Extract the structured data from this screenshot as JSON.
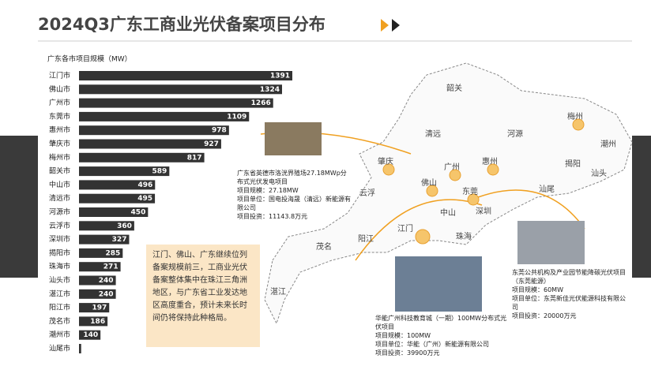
{
  "chart_data": {
    "type": "bar",
    "orientation": "horizontal",
    "title": "2024Q3广东工商业光伏备案项目分布",
    "subtitle": "广东各市项目规模（MW）",
    "categories": [
      "江门市",
      "佛山市",
      "广州市",
      "东莞市",
      "惠州市",
      "肇庆市",
      "梅州市",
      "韶关市",
      "中山市",
      "清远市",
      "河源市",
      "云浮市",
      "深圳市",
      "揭阳市",
      "珠海市",
      "汕头市",
      "湛江市",
      "阳江市",
      "茂名市",
      "潮州市",
      "汕尾市"
    ],
    "values": [
      1391,
      1324,
      1266,
      1109,
      978,
      927,
      817,
      589,
      496,
      495,
      450,
      360,
      327,
      285,
      271,
      240,
      240,
      197,
      186,
      140,
      14
    ],
    "color": "#333333",
    "annotation": "江门、佛山、广东继续位列备案规模前三，工商业光伏备案整体集中在珠江三角洲地区，与广东省工业发达地区高度重合，预计未来长时间仍将保持此种格局。"
  },
  "map": {
    "cities": [
      "韶关",
      "清远",
      "河源",
      "梅州",
      "潮州",
      "揭阳",
      "汕头",
      "汕尾",
      "惠州",
      "肇庆",
      "广州",
      "佛山",
      "东莞",
      "云浮",
      "中山",
      "深圳",
      "江门",
      "珠海",
      "阳江",
      "茂名",
      "湛江"
    ]
  },
  "projects": [
    {
      "name": "广东省英德市洛洸界殖场27.18MWp分布式光伏发电项目",
      "scale": "项目规模：27.18MW",
      "unit": "项目单位：国电投海晟（清远）新能源有限公司",
      "investment": "项目投资：11143.8万元"
    },
    {
      "name": "华能广州科技教育城（一期）100MW分布式光伏项目",
      "scale": "项目规模：100MW",
      "unit": "项目单位：华能（广州）新能源有限公司",
      "investment": "项目投资：39900万元"
    },
    {
      "name": "东莞公共机构及产业园节能降碳光伏项目（东莞能源）",
      "scale": "项目规模：60MW",
      "unit": "项目单位：东莞新佳光伏能源科技有限公司",
      "investment": "项目投资：20000万元"
    }
  ]
}
